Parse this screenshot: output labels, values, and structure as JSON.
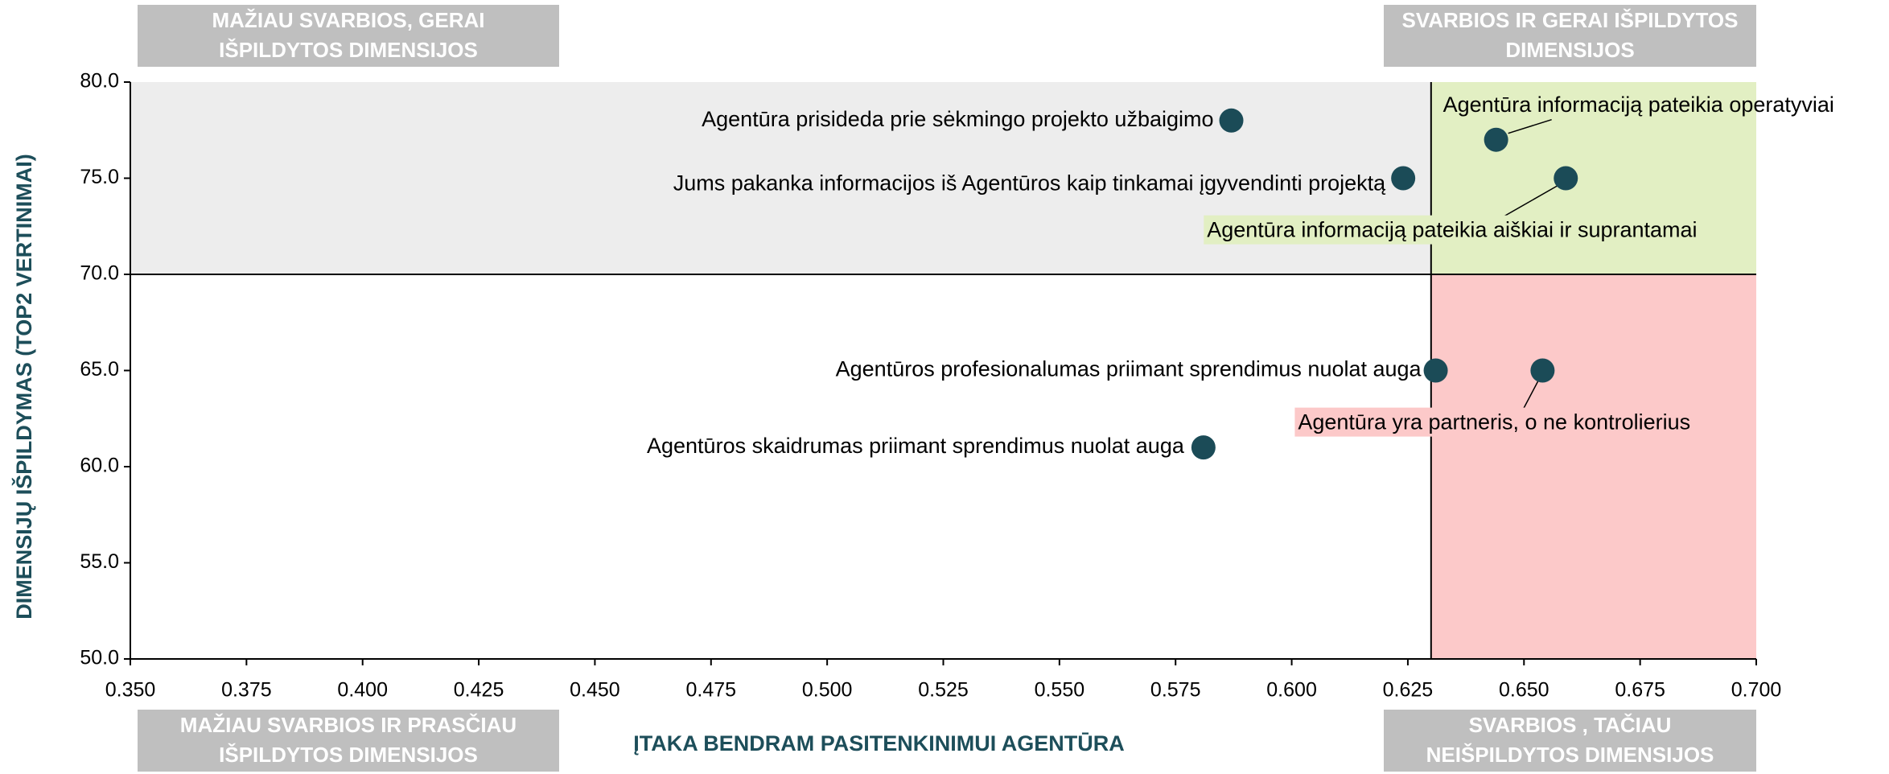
{
  "chart_data": {
    "type": "scatter",
    "x_label": "ĮTAKA BENDRAM PASITENKINIMUI AGENTŪRA",
    "y_label": "DIMENSIJŲ IŠPILDYMAS (TOP2 VERTINIMAI)",
    "xlim": [
      0.35,
      0.7
    ],
    "ylim": [
      50,
      80
    ],
    "xticks": [
      {
        "value": 0.35,
        "label": "0.350"
      },
      {
        "value": 0.375,
        "label": "0.375"
      },
      {
        "value": 0.4,
        "label": "0.400"
      },
      {
        "value": 0.425,
        "label": "0.425"
      },
      {
        "value": 0.45,
        "label": "0.450"
      },
      {
        "value": 0.475,
        "label": "0.475"
      },
      {
        "value": 0.5,
        "label": "0.500"
      },
      {
        "value": 0.525,
        "label": "0.525"
      },
      {
        "value": 0.55,
        "label": "0.550"
      },
      {
        "value": 0.575,
        "label": "0.575"
      },
      {
        "value": 0.6,
        "label": "0.600"
      },
      {
        "value": 0.625,
        "label": "0.625"
      },
      {
        "value": 0.65,
        "label": "0.650"
      },
      {
        "value": 0.675,
        "label": "0.675"
      },
      {
        "value": 0.7,
        "label": "0.700"
      }
    ],
    "yticks": [
      {
        "value": 50,
        "label": "50.0"
      },
      {
        "value": 55,
        "label": "55.0"
      },
      {
        "value": 60,
        "label": "60.0"
      },
      {
        "value": 65,
        "label": "65.0"
      },
      {
        "value": 70,
        "label": "70.0"
      },
      {
        "value": 75,
        "label": "75.0"
      },
      {
        "value": 80,
        "label": "80.0"
      }
    ],
    "divider_x": 0.63,
    "divider_y": 70,
    "quadrant_colors": {
      "top_left": "#ededed",
      "top_right": "#e2efc3",
      "bottom_right": "#fcc9c9",
      "bottom_left": "#ffffff"
    },
    "quadrant_labels": {
      "top_left": [
        "MAŽIAU SVARBIOS, GERAI",
        "IŠPILDYTOS DIMENSIJOS"
      ],
      "top_right": [
        "SVARBIOS IR GERAI IŠPILDYTOS",
        "DIMENSIJOS"
      ],
      "bottom_left": [
        "MAŽIAU SVARBIOS IR PRASČIAU",
        "IŠPILDYTOS DIMENSIJOS"
      ],
      "bottom_right": [
        "SVARBIOS , TAČIAU",
        "NEIŠPILDYTOS DIMENSIJOS"
      ]
    },
    "series": [
      {
        "color": "#1b4b57",
        "x": [
          0.587,
          0.624,
          0.644,
          0.659,
          0.631,
          0.654,
          0.581
        ],
        "values": [
          78.0,
          75.0,
          77.0,
          75.0,
          65.0,
          65.0,
          61.0
        ],
        "labels": [
          "Agentūra prisideda prie sėkmingo projekto užbaigimo",
          "Jums pakanka informacijos iš Agentūros kaip tinkamai įgyvendinti projektą",
          "Agentūra informaciją pateikia operatyviai",
          "Agentūra informaciją pateikia aiškiai ir suprantamai",
          "Agentūros profesionalumas priimant sprendimus nuolat auga",
          "Agentūra yra partneris, o ne kontrolierius",
          "Agentūros skaidrumas priimant sprendimus nuolat auga"
        ]
      }
    ]
  }
}
